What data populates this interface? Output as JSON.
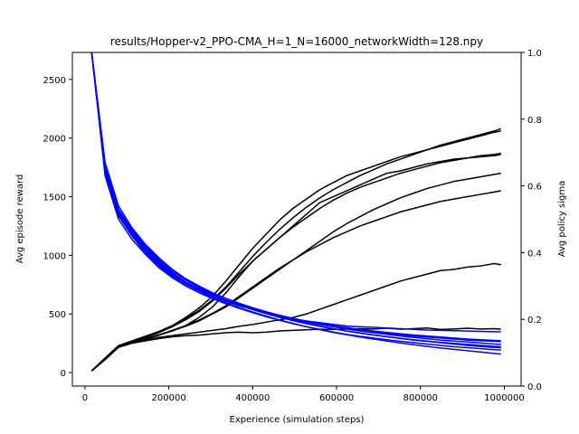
{
  "chart_data": {
    "type": "line",
    "title": "results/Hopper-v2_PPO-CMA_H=1_N=16000_networkWidth=128.npy",
    "xlabel": "Experience (simulation steps)",
    "ylabel": "Avg episode reward",
    "y2label": "Avg policy sigma",
    "xlim": [
      -30000,
      1040000
    ],
    "ylim": [
      -115,
      2730
    ],
    "y2lim": [
      0,
      1
    ],
    "xticks": [
      0,
      200000,
      400000,
      600000,
      800000,
      1000000
    ],
    "xtick_labels": [
      "0",
      "200000",
      "400000",
      "600000",
      "800000",
      "1000000"
    ],
    "yticks": [
      0,
      500,
      1000,
      1500,
      2000,
      2500
    ],
    "ytick_labels": [
      "0",
      "500",
      "1000",
      "1500",
      "2000",
      "2500"
    ],
    "y2ticks": [
      0,
      0.2,
      0.4,
      0.6,
      0.8,
      1.0
    ],
    "y2tick_labels": [
      "0.0",
      "0.2",
      "0.4",
      "0.6",
      "0.8",
      "1.0"
    ],
    "x": [
      16000,
      48000,
      80000,
      112000,
      144000,
      176000,
      208000,
      240000,
      272000,
      304000,
      336000,
      368000,
      400000,
      432000,
      464000,
      496000,
      528000,
      560000,
      592000,
      624000,
      656000,
      688000,
      720000,
      752000,
      784000,
      816000,
      848000,
      880000,
      912000,
      944000,
      976000,
      992000
    ],
    "colors": {
      "reward": "#000000",
      "sigma": "#0000ff"
    },
    "reward_series": [
      {
        "values": [
          15,
          110,
          215,
          250,
          270,
          290,
          305,
          315,
          320,
          330,
          340,
          345,
          340,
          345,
          355,
          360,
          365,
          370,
          368,
          372,
          375,
          372,
          378,
          370,
          375,
          380,
          368,
          372,
          378,
          372,
          375,
          370
        ]
      },
      {
        "values": [
          15,
          120,
          225,
          260,
          280,
          300,
          315,
          330,
          345,
          360,
          375,
          395,
          410,
          430,
          450,
          470,
          500,
          540,
          580,
          620,
          660,
          700,
          740,
          780,
          810,
          840,
          870,
          880,
          900,
          910,
          930,
          920
        ]
      },
      {
        "values": [
          15,
          115,
          220,
          255,
          290,
          320,
          360,
          400,
          470,
          560,
          680,
          820,
          950,
          1050,
          1150,
          1250,
          1350,
          1450,
          1500,
          1550,
          1600,
          1650,
          1700,
          1720,
          1750,
          1780,
          1800,
          1820,
          1830,
          1840,
          1850,
          1860
        ]
      },
      {
        "values": [
          15,
          125,
          230,
          270,
          310,
          350,
          400,
          470,
          550,
          650,
          780,
          920,
          1060,
          1180,
          1300,
          1400,
          1480,
          1560,
          1620,
          1680,
          1720,
          1760,
          1800,
          1840,
          1870,
          1900,
          1930,
          1960,
          1990,
          2020,
          2050,
          2060
        ]
      },
      {
        "values": [
          15,
          118,
          222,
          262,
          300,
          340,
          390,
          450,
          520,
          610,
          720,
          840,
          950,
          1050,
          1150,
          1240,
          1320,
          1400,
          1470,
          1530,
          1580,
          1620,
          1660,
          1700,
          1730,
          1760,
          1790,
          1810,
          1830,
          1850,
          1860,
          1870
        ]
      },
      {
        "values": [
          15,
          112,
          218,
          258,
          288,
          318,
          355,
          395,
          440,
          500,
          560,
          640,
          720,
          800,
          880,
          960,
          1040,
          1120,
          1200,
          1270,
          1330,
          1390,
          1440,
          1490,
          1530,
          1570,
          1600,
          1630,
          1650,
          1670,
          1690,
          1700
        ]
      },
      {
        "values": [
          15,
          122,
          228,
          268,
          305,
          345,
          395,
          460,
          530,
          620,
          730,
          860,
          990,
          1110,
          1220,
          1320,
          1410,
          1490,
          1560,
          1620,
          1680,
          1730,
          1780,
          1820,
          1860,
          1900,
          1940,
          1970,
          2000,
          2030,
          2060,
          2080
        ]
      },
      {
        "values": [
          15,
          116,
          221,
          259,
          292,
          322,
          358,
          400,
          448,
          505,
          570,
          650,
          730,
          810,
          890,
          960,
          1030,
          1090,
          1150,
          1200,
          1250,
          1290,
          1330,
          1370,
          1400,
          1430,
          1460,
          1480,
          1500,
          1520,
          1540,
          1550
        ]
      }
    ],
    "sigma_series": [
      {
        "values": [
          1.0,
          0.65,
          0.52,
          0.46,
          0.41,
          0.37,
          0.335,
          0.31,
          0.29,
          0.27,
          0.255,
          0.24,
          0.23,
          0.22,
          0.21,
          0.2,
          0.195,
          0.19,
          0.185,
          0.18,
          0.178,
          0.176,
          0.174,
          0.172,
          0.17,
          0.168,
          0.167,
          0.166,
          0.165,
          0.164,
          0.163,
          0.163
        ]
      },
      {
        "values": [
          1.0,
          0.64,
          0.51,
          0.45,
          0.4,
          0.36,
          0.33,
          0.305,
          0.285,
          0.265,
          0.25,
          0.235,
          0.222,
          0.21,
          0.198,
          0.188,
          0.178,
          0.17,
          0.162,
          0.155,
          0.149,
          0.144,
          0.139,
          0.134,
          0.13,
          0.126,
          0.122,
          0.118,
          0.115,
          0.112,
          0.109,
          0.108
        ]
      },
      {
        "values": [
          1.0,
          0.66,
          0.53,
          0.47,
          0.42,
          0.38,
          0.345,
          0.318,
          0.296,
          0.276,
          0.258,
          0.243,
          0.23,
          0.218,
          0.207,
          0.197,
          0.188,
          0.18,
          0.172,
          0.165,
          0.159,
          0.153,
          0.148,
          0.143,
          0.138,
          0.134,
          0.13,
          0.126,
          0.122,
          0.119,
          0.116,
          0.115
        ]
      },
      {
        "values": [
          1.0,
          0.63,
          0.5,
          0.44,
          0.395,
          0.355,
          0.325,
          0.3,
          0.28,
          0.262,
          0.247,
          0.233,
          0.22,
          0.208,
          0.197,
          0.187,
          0.178,
          0.169,
          0.161,
          0.154,
          0.147,
          0.141,
          0.135,
          0.129,
          0.124,
          0.119,
          0.114,
          0.11,
          0.106,
          0.102,
          0.098,
          0.096
        ]
      },
      {
        "values": [
          1.0,
          0.655,
          0.525,
          0.465,
          0.415,
          0.375,
          0.34,
          0.312,
          0.292,
          0.273,
          0.258,
          0.245,
          0.233,
          0.222,
          0.212,
          0.203,
          0.195,
          0.188,
          0.181,
          0.175,
          0.17,
          0.165,
          0.161,
          0.157,
          0.153,
          0.15,
          0.147,
          0.144,
          0.141,
          0.139,
          0.137,
          0.136
        ]
      },
      {
        "values": [
          1.0,
          0.645,
          0.515,
          0.455,
          0.405,
          0.365,
          0.333,
          0.308,
          0.288,
          0.27,
          0.255,
          0.242,
          0.23,
          0.219,
          0.209,
          0.2,
          0.192,
          0.185,
          0.178,
          0.172,
          0.167,
          0.162,
          0.158,
          0.154,
          0.15,
          0.147,
          0.144,
          0.141,
          0.138,
          0.136,
          0.134,
          0.133
        ]
      },
      {
        "values": [
          1.0,
          0.67,
          0.54,
          0.475,
          0.425,
          0.385,
          0.35,
          0.322,
          0.3,
          0.28,
          0.263,
          0.248,
          0.235,
          0.223,
          0.212,
          0.202,
          0.193,
          0.185,
          0.178,
          0.171,
          0.165,
          0.16,
          0.155,
          0.15,
          0.146,
          0.142,
          0.138,
          0.135,
          0.132,
          0.129,
          0.126,
          0.125
        ]
      },
      {
        "values": [
          1.0,
          0.65,
          0.52,
          0.46,
          0.41,
          0.37,
          0.338,
          0.312,
          0.29,
          0.272,
          0.256,
          0.242,
          0.229,
          0.217,
          0.206,
          0.196,
          0.187,
          0.179,
          0.172,
          0.165,
          0.159,
          0.153,
          0.148,
          0.143,
          0.139,
          0.135,
          0.131,
          0.128,
          0.125,
          0.122,
          0.119,
          0.118
        ]
      }
    ]
  }
}
